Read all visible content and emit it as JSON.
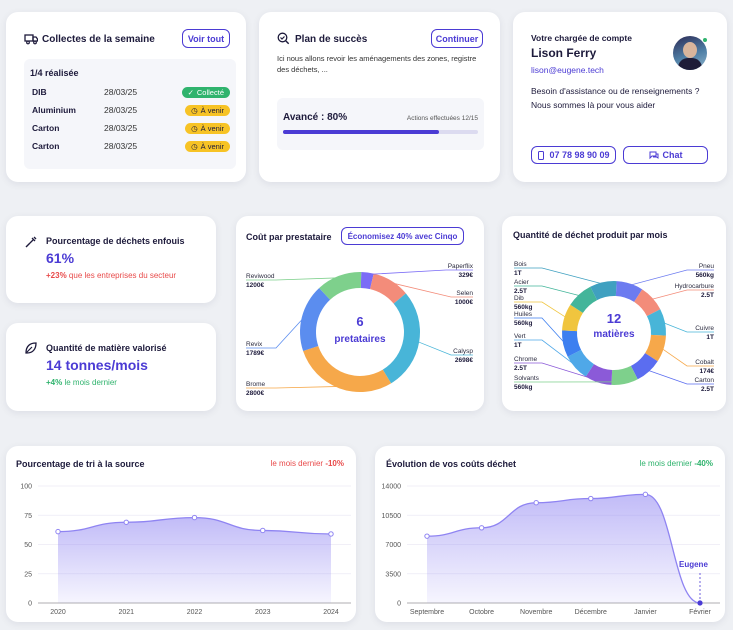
{
  "collectes": {
    "title": "Collectes de la semaine",
    "view_all": "Voir tout",
    "progress": "1/4 réalisée",
    "rows": [
      {
        "name": "DIB",
        "date": "28/03/25",
        "status": "Collecté",
        "kind": "done"
      },
      {
        "name": "Aluminium",
        "date": "28/03/25",
        "status": "À venir",
        "kind": "upcoming"
      },
      {
        "name": "Carton",
        "date": "28/03/25",
        "status": "À venir",
        "kind": "upcoming"
      },
      {
        "name": "Carton",
        "date": "28/03/25",
        "status": "À venir",
        "kind": "upcoming"
      }
    ]
  },
  "plan": {
    "title": "Plan de succès",
    "continue": "Continuer",
    "description": "Ici nous allons revoir les aménagements des zones, registre des déchets, ...",
    "progress_label": "Avancé : 80%",
    "actions_label": "Actions effectuées 12/15",
    "progress_value": 0.8
  },
  "account": {
    "role": "Votre chargée de compte",
    "name": "Lison Ferry",
    "email": "lison@eugene.tech",
    "message": "Besoin d'assistance ou de renseignements ? Nous sommes là pour vous aider",
    "phone": "07 78 98 90 09",
    "chat": "Chat"
  },
  "buried": {
    "title": "Pourcentage de déchets enfouis",
    "value": "61%",
    "delta": "+23%",
    "delta_text": "que les entreprises du secteur"
  },
  "valorised": {
    "title": "Quantité de matière valorisé",
    "value": "14 tonnes/mois",
    "delta": "+4%",
    "delta_text": "le mois dernier"
  },
  "cost_donut": {
    "title": "Coût par prestataire",
    "cta": "Économisez 40% avec Cinqo",
    "center_value": "6",
    "center_label": "pretataires"
  },
  "qty_donut": {
    "title": "Quantité de déchet produit par mois",
    "center_value": "12",
    "center_label": "matières"
  },
  "tri_chart": {
    "title": "Pourcentage de tri à la source",
    "badge_text": "le mois dernier",
    "badge_value": "-10%"
  },
  "cost_chart": {
    "title": "Évolution de vos coûts déchet",
    "badge_text": "le mois dernier",
    "badge_value": "-40%",
    "annotation": "Eugene"
  },
  "colors": {
    "accent": "#4b3bd4",
    "positive": "#2fb36d",
    "negative": "#e84a4a",
    "yellow": "#f7c325"
  },
  "chart_data": [
    {
      "type": "pie",
      "categories": [
        "Paperflix",
        "Selen",
        "Calysp",
        "Brome",
        "Revix",
        "Reviwood"
      ],
      "values": [
        329,
        1000,
        2698,
        2800,
        1789,
        1200
      ],
      "value_labels": [
        "329€",
        "1000€",
        "2698€",
        "2800€",
        "1789€",
        "1200€"
      ],
      "colors": [
        "#7b6cf6",
        "#f38c7a",
        "#48b5d8",
        "#f6a84a",
        "#5b8def",
        "#7ed08c"
      ]
    },
    {
      "type": "pie",
      "categories": [
        "Pneu",
        "Hydrocarbure",
        "Cuivre",
        "Cobalt",
        "Carton",
        "Solvants",
        "Chrome",
        "Vert",
        "Huiles",
        "Dib",
        "Acier",
        "Bois"
      ],
      "value_labels": [
        "560kg",
        "2.5T",
        "1T",
        "174€",
        "2.5T",
        "560kg",
        "2.5T",
        "1T",
        "560kg",
        "560kg",
        "2.5T",
        "1T"
      ],
      "values": [
        1,
        1,
        1,
        1,
        1,
        1,
        1,
        1,
        1,
        1,
        1,
        1
      ],
      "colors": [
        "#6c7bf0",
        "#f38c7a",
        "#48b5d8",
        "#f6a84a",
        "#5b6df0",
        "#7ed08c",
        "#8b5ad8",
        "#4fa8e8",
        "#3d7ff0",
        "#f0c53e",
        "#43b59a",
        "#3fa0c0"
      ]
    },
    {
      "type": "area",
      "title": "Pourcentage de tri à la source",
      "x": [
        "2020",
        "2021",
        "2022",
        "2023",
        "2024"
      ],
      "values": [
        61,
        69,
        73,
        62,
        59
      ],
      "ylim": [
        0,
        100
      ],
      "yticks": [
        "0",
        "25",
        "50",
        "75",
        "100"
      ]
    },
    {
      "type": "area",
      "title": "Évolution de vos coûts déchet",
      "x": [
        "Septembre",
        "Octobre",
        "Novembre",
        "Décembre",
        "Janvier",
        "Février"
      ],
      "values": [
        8000,
        9000,
        12000,
        12500,
        13000,
        0
      ],
      "ylim": [
        0,
        14000
      ],
      "yticks": [
        "0",
        "3500",
        "7000",
        "10500",
        "14000"
      ]
    }
  ]
}
